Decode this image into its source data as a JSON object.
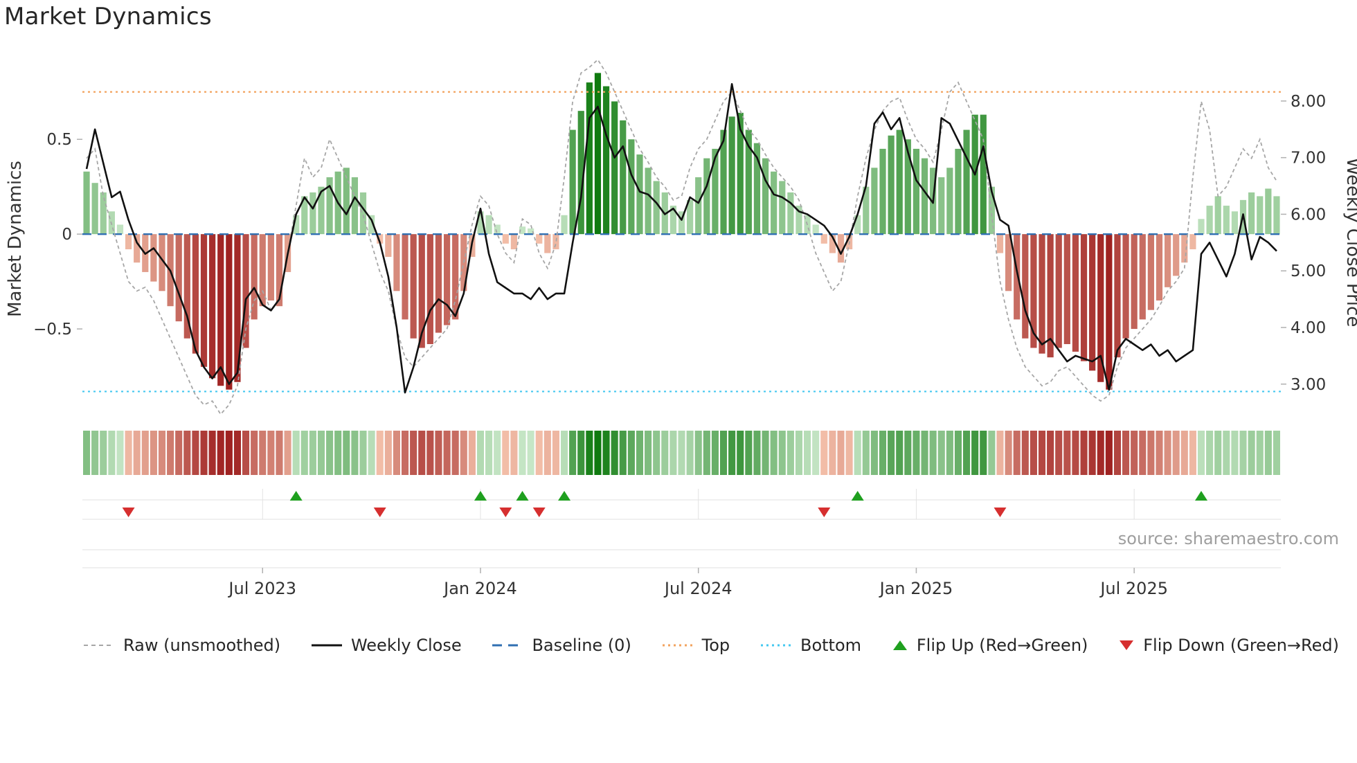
{
  "title": "Market Dynamics",
  "source": "source: sharemaestro.com",
  "axes": {
    "left_label": "Market Dynamics",
    "right_label": "Weekly Close Price",
    "left_ticks": [
      {
        "label": "0.5",
        "value": 0.5
      },
      {
        "label": "0",
        "value": 0
      },
      {
        "label": "−0.5",
        "value": -0.5
      }
    ],
    "right_ticks": [
      {
        "label": "8.00",
        "value": 8
      },
      {
        "label": "7.00",
        "value": 7
      },
      {
        "label": "6.00",
        "value": 6
      },
      {
        "label": "5.00",
        "value": 5
      },
      {
        "label": "4.00",
        "value": 4
      },
      {
        "label": "3.00",
        "value": 3
      }
    ],
    "x_ticks": [
      {
        "label": "Jul 2023",
        "index": 21
      },
      {
        "label": "Jan 2024",
        "index": 47
      },
      {
        "label": "Jul 2024",
        "index": 73
      },
      {
        "label": "Jan 2025",
        "index": 99
      },
      {
        "label": "Jul 2025",
        "index": 125
      }
    ]
  },
  "legend": [
    {
      "label": "Raw (unsmoothed)"
    },
    {
      "label": "Weekly Close"
    },
    {
      "label": "Baseline (0)"
    },
    {
      "label": "Top"
    },
    {
      "label": "Bottom"
    },
    {
      "label": "Flip Up (Red→Green)"
    },
    {
      "label": "Flip Down (Green→Red)"
    }
  ],
  "colors": {
    "raw": "#a6a6a6",
    "close": "#111111",
    "baseline": "#2f6fb2",
    "top": "#f2a35e",
    "bottom": "#45c8f0",
    "flip_up": "#1fa01f",
    "flip_down": "#d62f2f",
    "green_light": "#cdeacd",
    "green_dark": "#0f7a0f",
    "red_light": "#f7c7b0",
    "red_dark": "#9c1c1c",
    "grid": "#e2e2e2",
    "tick": "#b0b0b0",
    "tick_text": "#333333"
  },
  "chart_data": {
    "type": "bar+line",
    "weeks": 143,
    "title": "Market Dynamics",
    "left_axis": "Market Dynamics (oscillator)",
    "right_axis": "Weekly Close Price",
    "left_ylim": [
      -1.0,
      0.95
    ],
    "right_ylim": [
      2.3,
      8.83
    ],
    "baseline": 0,
    "top_threshold": 0.75,
    "bottom_threshold": -0.83,
    "flip_up_indices": [
      25,
      47,
      52,
      57,
      92,
      133
    ],
    "flip_down_indices": [
      5,
      35,
      50,
      54,
      88,
      109
    ],
    "oscillator": [
      0.33,
      0.27,
      0.22,
      0.12,
      0.05,
      -0.08,
      -0.15,
      -0.2,
      -0.25,
      -0.3,
      -0.38,
      -0.46,
      -0.55,
      -0.63,
      -0.7,
      -0.76,
      -0.8,
      -0.82,
      -0.78,
      -0.6,
      -0.45,
      -0.38,
      -0.35,
      -0.38,
      -0.2,
      0.1,
      0.2,
      0.22,
      0.25,
      0.3,
      0.33,
      0.35,
      0.3,
      0.22,
      0.1,
      -0.05,
      -0.12,
      -0.3,
      -0.45,
      -0.55,
      -0.6,
      -0.58,
      -0.52,
      -0.48,
      -0.45,
      -0.3,
      -0.12,
      0.12,
      0.1,
      0.05,
      -0.05,
      -0.08,
      0.04,
      0.03,
      -0.05,
      -0.1,
      -0.08,
      0.1,
      0.55,
      0.65,
      0.8,
      0.85,
      0.78,
      0.7,
      0.6,
      0.5,
      0.42,
      0.35,
      0.28,
      0.22,
      0.15,
      0.12,
      0.18,
      0.3,
      0.4,
      0.45,
      0.55,
      0.62,
      0.64,
      0.55,
      0.48,
      0.4,
      0.33,
      0.28,
      0.22,
      0.15,
      0.1,
      0.05,
      -0.05,
      -0.1,
      -0.15,
      -0.08,
      0.1,
      0.25,
      0.35,
      0.45,
      0.52,
      0.55,
      0.5,
      0.45,
      0.4,
      0.35,
      0.3,
      0.35,
      0.45,
      0.55,
      0.63,
      0.63,
      0.25,
      -0.1,
      -0.3,
      -0.45,
      -0.55,
      -0.6,
      -0.63,
      -0.65,
      -0.6,
      -0.58,
      -0.62,
      -0.67,
      -0.72,
      -0.78,
      -0.82,
      -0.65,
      -0.55,
      -0.5,
      -0.45,
      -0.4,
      -0.35,
      -0.28,
      -0.22,
      -0.15,
      -0.08,
      0.08,
      0.15,
      0.2,
      0.15,
      0.12,
      0.18,
      0.22,
      0.2,
      0.24,
      0.2
    ],
    "raw": [
      0.4,
      0.45,
      0.2,
      0.05,
      -0.1,
      -0.25,
      -0.3,
      -0.28,
      -0.35,
      -0.45,
      -0.55,
      -0.65,
      -0.75,
      -0.85,
      -0.9,
      -0.88,
      -0.95,
      -0.9,
      -0.8,
      -0.5,
      -0.35,
      -0.3,
      -0.4,
      -0.35,
      -0.1,
      0.15,
      0.4,
      0.3,
      0.35,
      0.5,
      0.4,
      0.3,
      0.2,
      0.1,
      -0.05,
      -0.2,
      -0.3,
      -0.5,
      -0.65,
      -0.7,
      -0.65,
      -0.6,
      -0.55,
      -0.5,
      -0.35,
      -0.15,
      0.05,
      0.2,
      0.15,
      0.0,
      -0.1,
      -0.15,
      0.08,
      0.05,
      -0.1,
      -0.18,
      -0.05,
      0.3,
      0.7,
      0.85,
      0.88,
      0.92,
      0.85,
      0.75,
      0.65,
      0.55,
      0.45,
      0.38,
      0.3,
      0.25,
      0.18,
      0.2,
      0.35,
      0.45,
      0.5,
      0.6,
      0.7,
      0.75,
      0.65,
      0.55,
      0.5,
      0.42,
      0.35,
      0.3,
      0.25,
      0.18,
      0.05,
      -0.1,
      -0.2,
      -0.3,
      -0.25,
      -0.05,
      0.2,
      0.4,
      0.55,
      0.65,
      0.7,
      0.72,
      0.6,
      0.5,
      0.45,
      0.38,
      0.55,
      0.75,
      0.8,
      0.7,
      0.6,
      0.5,
      0.1,
      -0.25,
      -0.45,
      -0.6,
      -0.7,
      -0.75,
      -0.8,
      -0.78,
      -0.72,
      -0.7,
      -0.75,
      -0.8,
      -0.85,
      -0.88,
      -0.85,
      -0.7,
      -0.6,
      -0.55,
      -0.5,
      -0.45,
      -0.38,
      -0.3,
      -0.25,
      -0.18,
      0.3,
      0.7,
      0.55,
      0.2,
      0.25,
      0.35,
      0.45,
      0.4,
      0.5,
      0.35,
      0.28
    ],
    "weekly_close": [
      6.8,
      7.5,
      6.9,
      6.3,
      6.4,
      5.9,
      5.5,
      5.3,
      5.4,
      5.2,
      5.0,
      4.6,
      4.2,
      3.6,
      3.3,
      3.1,
      3.3,
      3.0,
      3.2,
      4.5,
      4.7,
      4.4,
      4.3,
      4.5,
      5.3,
      6.0,
      6.3,
      6.1,
      6.4,
      6.5,
      6.2,
      6.0,
      6.3,
      6.1,
      5.9,
      5.5,
      4.9,
      4.0,
      2.85,
      3.3,
      3.9,
      4.3,
      4.5,
      4.4,
      4.2,
      4.6,
      5.5,
      6.1,
      5.3,
      4.8,
      4.7,
      4.6,
      4.6,
      4.5,
      4.7,
      4.5,
      4.6,
      4.6,
      5.5,
      6.3,
      7.7,
      7.9,
      7.4,
      7.0,
      7.2,
      6.7,
      6.4,
      6.35,
      6.2,
      6.0,
      6.1,
      5.9,
      6.3,
      6.2,
      6.5,
      7.0,
      7.3,
      8.3,
      7.5,
      7.2,
      7.0,
      6.6,
      6.35,
      6.3,
      6.2,
      6.05,
      6.0,
      5.9,
      5.8,
      5.6,
      5.3,
      5.6,
      6.0,
      6.5,
      7.6,
      7.8,
      7.5,
      7.7,
      7.1,
      6.6,
      6.4,
      6.2,
      7.7,
      7.6,
      7.3,
      7.0,
      6.7,
      7.2,
      6.4,
      5.9,
      5.8,
      5.0,
      4.3,
      3.9,
      3.7,
      3.8,
      3.6,
      3.4,
      3.5,
      3.45,
      3.4,
      3.5,
      2.9,
      3.6,
      3.8,
      3.7,
      3.6,
      3.7,
      3.5,
      3.6,
      3.4,
      3.5,
      3.6,
      5.3,
      5.5,
      5.2,
      4.9,
      5.3,
      6.0,
      5.2,
      5.6,
      5.5,
      5.35
    ]
  }
}
